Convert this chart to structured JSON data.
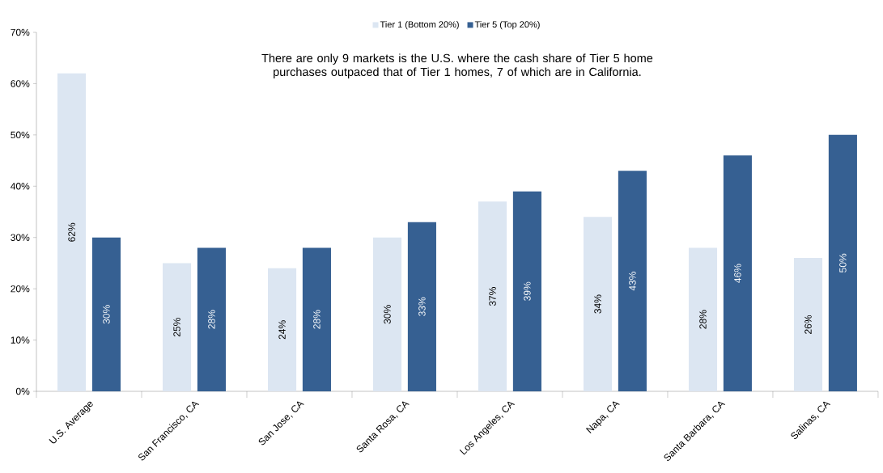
{
  "chart_data": {
    "type": "bar",
    "title": "There are only 9 markets is the U.S. where the cash share of Tier 5 home purchases outpaced that of Tier 1 homes, 7 of which are in California.",
    "categories": [
      "U.S. Average",
      "San Francisco, CA",
      "San Jose, CA",
      "Santa Rosa, CA",
      "Los Angeles, CA",
      "Napa, CA",
      "Santa Barbara, CA",
      "Salinas, CA"
    ],
    "series": [
      {
        "name": "Tier 1 (Bottom 20%)",
        "color": "#dce6f2",
        "values": [
          62,
          25,
          24,
          30,
          37,
          34,
          28,
          26
        ],
        "value_labels": [
          "62%",
          "25%",
          "24%",
          "30%",
          "37%",
          "34%",
          "28%",
          "26%"
        ]
      },
      {
        "name": "Tier 5 (Top 20%)",
        "color": "#366092",
        "values": [
          30,
          28,
          28,
          33,
          39,
          43,
          46,
          50
        ],
        "value_labels": [
          "30%",
          "28%",
          "28%",
          "33%",
          "39%",
          "43%",
          "46%",
          "50%"
        ]
      }
    ],
    "ylim": [
      0,
      70
    ],
    "yticks": [
      {
        "value": 0,
        "label": "0%"
      },
      {
        "value": 10,
        "label": "10%"
      },
      {
        "value": 20,
        "label": "20%"
      },
      {
        "value": 30,
        "label": "30%"
      },
      {
        "value": 40,
        "label": "40%"
      },
      {
        "value": 50,
        "label": "50%"
      },
      {
        "value": 60,
        "label": "60%"
      },
      {
        "value": 70,
        "label": "70%"
      }
    ],
    "legend": "top"
  }
}
